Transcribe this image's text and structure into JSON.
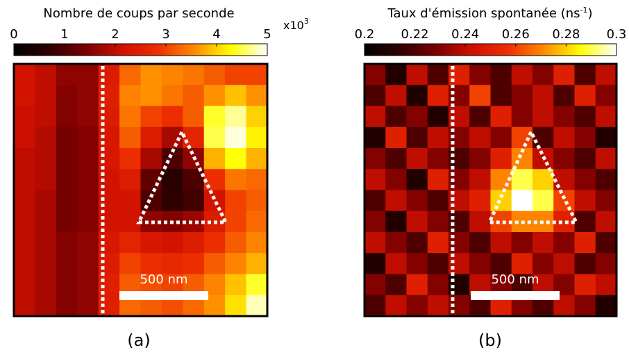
{
  "chart_data": [
    {
      "type": "heatmap",
      "title": "Nombre de coups par seconde",
      "scale_label": "x10",
      "scale_exponent": "3",
      "clim": [
        0,
        5
      ],
      "colorbar_ticks": [
        0,
        1,
        2,
        3,
        4,
        5
      ],
      "colors": [
        "#000000",
        "#300000",
        "#7a0000",
        "#d01000",
        "#ee3000",
        "#ff8c00",
        "#ffff00",
        "#ffffff"
      ],
      "scale_bar": "500 nm",
      "panel_label": "(a)",
      "values": [
        [
          2.2,
          2.0,
          1.6,
          1.6,
          2.4,
          3.3,
          3.6,
          3.5,
          3.4,
          3.2,
          3.0,
          3.0
        ],
        [
          2.2,
          2.0,
          1.5,
          1.6,
          2.5,
          3.5,
          3.6,
          3.4,
          3.2,
          3.6,
          3.9,
          3.6
        ],
        [
          2.1,
          2.0,
          1.5,
          1.6,
          2.4,
          3.4,
          3.0,
          2.8,
          3.2,
          4.4,
          4.7,
          4.0
        ],
        [
          2.1,
          1.9,
          1.4,
          1.5,
          2.3,
          3.2,
          2.4,
          1.8,
          2.6,
          4.5,
          4.9,
          4.2
        ],
        [
          2.0,
          1.9,
          1.4,
          1.5,
          2.3,
          2.8,
          1.8,
          1.0,
          1.6,
          3.8,
          4.3,
          3.8
        ],
        [
          2.0,
          1.9,
          1.4,
          1.5,
          2.2,
          2.4,
          1.2,
          0.6,
          1.0,
          2.8,
          3.4,
          3.3
        ],
        [
          2.0,
          1.8,
          1.4,
          1.5,
          2.2,
          2.2,
          1.0,
          0.7,
          0.9,
          2.2,
          3.0,
          3.2
        ],
        [
          2.0,
          1.8,
          1.4,
          1.5,
          2.2,
          2.2,
          1.6,
          1.5,
          1.7,
          2.4,
          3.0,
          3.3
        ],
        [
          2.0,
          1.8,
          1.5,
          1.6,
          2.3,
          2.6,
          2.3,
          2.2,
          2.4,
          2.8,
          3.2,
          3.5
        ],
        [
          2.0,
          1.8,
          1.5,
          1.6,
          2.4,
          3.0,
          2.8,
          2.7,
          2.8,
          3.2,
          3.5,
          3.8
        ],
        [
          2.0,
          1.8,
          1.5,
          1.6,
          2.5,
          3.2,
          3.1,
          3.0,
          3.2,
          3.5,
          3.9,
          4.4
        ],
        [
          2.0,
          1.8,
          1.5,
          1.6,
          2.5,
          3.3,
          3.2,
          3.1,
          3.3,
          3.6,
          4.1,
          4.8
        ]
      ]
    },
    {
      "type": "heatmap",
      "title": "Taux d'émission spontanée (ns",
      "title_sup": "-1",
      "title_end": ")",
      "clim": [
        0.2,
        0.3
      ],
      "colorbar_ticks": [
        0.2,
        0.22,
        0.24,
        0.26,
        0.28,
        0.3
      ],
      "colors": [
        "#000000",
        "#300000",
        "#7a0000",
        "#d01000",
        "#ee3000",
        "#ff8c00",
        "#ffff00",
        "#ffffff"
      ],
      "scale_bar": "500 nm",
      "panel_label": "(b)",
      "values": [
        [
          0.23,
          0.21,
          0.24,
          0.22,
          0.25,
          0.23,
          0.22,
          0.24,
          0.23,
          0.25,
          0.22,
          0.24
        ],
        [
          0.22,
          0.24,
          0.21,
          0.25,
          0.23,
          0.26,
          0.22,
          0.23,
          0.24,
          0.22,
          0.25,
          0.23
        ],
        [
          0.24,
          0.22,
          0.23,
          0.21,
          0.24,
          0.22,
          0.25,
          0.23,
          0.24,
          0.23,
          0.22,
          0.24
        ],
        [
          0.21,
          0.25,
          0.22,
          0.24,
          0.23,
          0.24,
          0.23,
          0.26,
          0.22,
          0.24,
          0.23,
          0.21
        ],
        [
          0.23,
          0.22,
          0.24,
          0.23,
          0.22,
          0.23,
          0.25,
          0.27,
          0.24,
          0.23,
          0.22,
          0.24
        ],
        [
          0.24,
          0.23,
          0.21,
          0.25,
          0.23,
          0.24,
          0.27,
          0.29,
          0.28,
          0.24,
          0.23,
          0.22
        ],
        [
          0.22,
          0.24,
          0.23,
          0.22,
          0.24,
          0.25,
          0.28,
          0.3,
          0.29,
          0.26,
          0.24,
          0.23
        ],
        [
          0.23,
          0.21,
          0.24,
          0.23,
          0.22,
          0.24,
          0.26,
          0.27,
          0.27,
          0.25,
          0.22,
          0.24
        ],
        [
          0.24,
          0.23,
          0.22,
          0.25,
          0.23,
          0.22,
          0.24,
          0.23,
          0.24,
          0.23,
          0.25,
          0.22
        ],
        [
          0.21,
          0.24,
          0.23,
          0.22,
          0.24,
          0.23,
          0.22,
          0.25,
          0.23,
          0.24,
          0.22,
          0.23
        ],
        [
          0.23,
          0.22,
          0.25,
          0.23,
          0.21,
          0.24,
          0.23,
          0.22,
          0.24,
          0.23,
          0.25,
          0.24
        ],
        [
          0.22,
          0.24,
          0.23,
          0.24,
          0.23,
          0.22,
          0.25,
          0.23,
          0.22,
          0.24,
          0.23,
          0.21
        ]
      ]
    }
  ]
}
